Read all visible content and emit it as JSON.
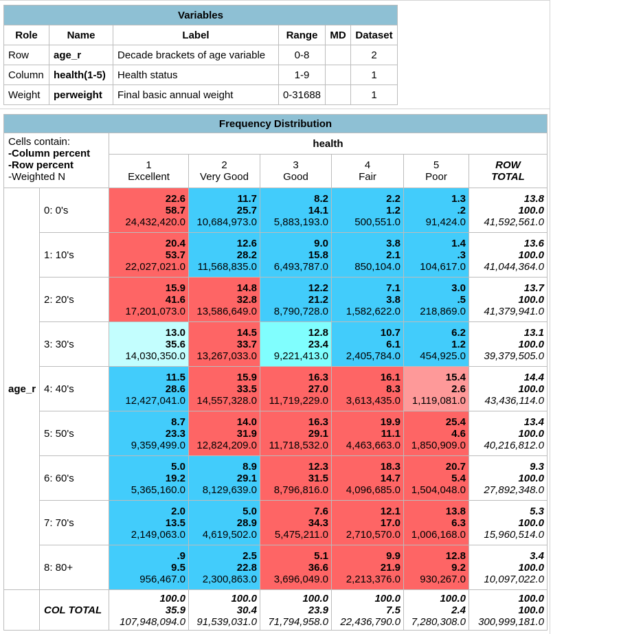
{
  "variables": {
    "title": "Variables",
    "headers": [
      "Role",
      "Name",
      "Label",
      "Range",
      "MD",
      "Dataset"
    ],
    "rows": [
      {
        "role": "Row",
        "name": "age_r",
        "label": "Decade brackets of age variable",
        "range": "0-8",
        "md": "",
        "dataset": "2"
      },
      {
        "role": "Column",
        "name": "health(1-5)",
        "label": "Health status",
        "range": "1-9",
        "md": "",
        "dataset": "1"
      },
      {
        "role": "Weight",
        "name": "perweight",
        "label": "Final basic annual weight",
        "range": "0-31688",
        "md": "",
        "dataset": "1"
      }
    ]
  },
  "frequency": {
    "title": "Frequency Distribution",
    "cells_contain": [
      "Cells contain:",
      "-Column percent",
      "-Row percent",
      "-Weighted N"
    ],
    "column_variable": "health",
    "row_variable": "age_r",
    "columns": [
      {
        "code": "1",
        "label": "Excellent"
      },
      {
        "code": "2",
        "label": "Very Good"
      },
      {
        "code": "3",
        "label": "Good"
      },
      {
        "code": "4",
        "label": "Fair"
      },
      {
        "code": "5",
        "label": "Poor"
      }
    ],
    "row_total_label": [
      "ROW",
      "TOTAL"
    ],
    "col_total_label": "COL TOTAL",
    "colors": {
      "red": "#fe6565",
      "blue": "#42ccfb",
      "pink": "#fe9999",
      "lightcyan": "#c3fefe",
      "cyan": "#80fefe",
      "white": "#ffffff"
    },
    "rows": [
      {
        "label": "0: 0's",
        "cells": [
          {
            "a": "22.6",
            "b": "58.7",
            "n": "24,432,420.0",
            "color": "red"
          },
          {
            "a": "11.7",
            "b": "25.7",
            "n": "10,684,973.0",
            "color": "blue"
          },
          {
            "a": "8.2",
            "b": "14.1",
            "n": "5,883,193.0",
            "color": "blue"
          },
          {
            "a": "2.2",
            "b": "1.2",
            "n": "500,551.0",
            "color": "blue"
          },
          {
            "a": "1.3",
            "b": ".2",
            "n": "91,424.0",
            "color": "blue"
          }
        ],
        "total": {
          "a": "13.8",
          "b": "100.0",
          "n": "41,592,561.0"
        }
      },
      {
        "label": "1: 10's",
        "cells": [
          {
            "a": "20.4",
            "b": "53.7",
            "n": "22,027,021.0",
            "color": "red"
          },
          {
            "a": "12.6",
            "b": "28.2",
            "n": "11,568,835.0",
            "color": "blue"
          },
          {
            "a": "9.0",
            "b": "15.8",
            "n": "6,493,787.0",
            "color": "blue"
          },
          {
            "a": "3.8",
            "b": "2.1",
            "n": "850,104.0",
            "color": "blue"
          },
          {
            "a": "1.4",
            "b": ".3",
            "n": "104,617.0",
            "color": "blue"
          }
        ],
        "total": {
          "a": "13.6",
          "b": "100.0",
          "n": "41,044,364.0"
        }
      },
      {
        "label": "2: 20's",
        "cells": [
          {
            "a": "15.9",
            "b": "41.6",
            "n": "17,201,073.0",
            "color": "red"
          },
          {
            "a": "14.8",
            "b": "32.8",
            "n": "13,586,649.0",
            "color": "red"
          },
          {
            "a": "12.2",
            "b": "21.2",
            "n": "8,790,728.0",
            "color": "blue"
          },
          {
            "a": "7.1",
            "b": "3.8",
            "n": "1,582,622.0",
            "color": "blue"
          },
          {
            "a": "3.0",
            "b": ".5",
            "n": "218,869.0",
            "color": "blue"
          }
        ],
        "total": {
          "a": "13.7",
          "b": "100.0",
          "n": "41,379,941.0"
        }
      },
      {
        "label": "3: 30's",
        "cells": [
          {
            "a": "13.0",
            "b": "35.6",
            "n": "14,030,350.0",
            "color": "lightcyan"
          },
          {
            "a": "14.5",
            "b": "33.7",
            "n": "13,267,033.0",
            "color": "red"
          },
          {
            "a": "12.8",
            "b": "23.4",
            "n": "9,221,413.0",
            "color": "cyan"
          },
          {
            "a": "10.7",
            "b": "6.1",
            "n": "2,405,784.0",
            "color": "blue"
          },
          {
            "a": "6.2",
            "b": "1.2",
            "n": "454,925.0",
            "color": "blue"
          }
        ],
        "total": {
          "a": "13.1",
          "b": "100.0",
          "n": "39,379,505.0"
        }
      },
      {
        "label": "4: 40's",
        "cells": [
          {
            "a": "11.5",
            "b": "28.6",
            "n": "12,427,041.0",
            "color": "blue"
          },
          {
            "a": "15.9",
            "b": "33.5",
            "n": "14,557,328.0",
            "color": "red"
          },
          {
            "a": "16.3",
            "b": "27.0",
            "n": "11,719,229.0",
            "color": "red"
          },
          {
            "a": "16.1",
            "b": "8.3",
            "n": "3,613,435.0",
            "color": "red"
          },
          {
            "a": "15.4",
            "b": "2.6",
            "n": "1,119,081.0",
            "color": "pink"
          }
        ],
        "total": {
          "a": "14.4",
          "b": "100.0",
          "n": "43,436,114.0"
        }
      },
      {
        "label": "5: 50's",
        "cells": [
          {
            "a": "8.7",
            "b": "23.3",
            "n": "9,359,499.0",
            "color": "blue"
          },
          {
            "a": "14.0",
            "b": "31.9",
            "n": "12,824,209.0",
            "color": "red"
          },
          {
            "a": "16.3",
            "b": "29.1",
            "n": "11,718,532.0",
            "color": "red"
          },
          {
            "a": "19.9",
            "b": "11.1",
            "n": "4,463,663.0",
            "color": "red"
          },
          {
            "a": "25.4",
            "b": "4.6",
            "n": "1,850,909.0",
            "color": "red"
          }
        ],
        "total": {
          "a": "13.4",
          "b": "100.0",
          "n": "40,216,812.0"
        }
      },
      {
        "label": "6: 60's",
        "cells": [
          {
            "a": "5.0",
            "b": "19.2",
            "n": "5,365,160.0",
            "color": "blue"
          },
          {
            "a": "8.9",
            "b": "29.1",
            "n": "8,129,639.0",
            "color": "blue"
          },
          {
            "a": "12.3",
            "b": "31.5",
            "n": "8,796,816.0",
            "color": "red"
          },
          {
            "a": "18.3",
            "b": "14.7",
            "n": "4,096,685.0",
            "color": "red"
          },
          {
            "a": "20.7",
            "b": "5.4",
            "n": "1,504,048.0",
            "color": "red"
          }
        ],
        "total": {
          "a": "9.3",
          "b": "100.0",
          "n": "27,892,348.0"
        }
      },
      {
        "label": "7: 70's",
        "cells": [
          {
            "a": "2.0",
            "b": "13.5",
            "n": "2,149,063.0",
            "color": "blue"
          },
          {
            "a": "5.0",
            "b": "28.9",
            "n": "4,619,502.0",
            "color": "blue"
          },
          {
            "a": "7.6",
            "b": "34.3",
            "n": "5,475,211.0",
            "color": "red"
          },
          {
            "a": "12.1",
            "b": "17.0",
            "n": "2,710,570.0",
            "color": "red"
          },
          {
            "a": "13.8",
            "b": "6.3",
            "n": "1,006,168.0",
            "color": "red"
          }
        ],
        "total": {
          "a": "5.3",
          "b": "100.0",
          "n": "15,960,514.0"
        }
      },
      {
        "label": "8: 80+",
        "cells": [
          {
            "a": ".9",
            "b": "9.5",
            "n": "956,467.0",
            "color": "blue"
          },
          {
            "a": "2.5",
            "b": "22.8",
            "n": "2,300,863.0",
            "color": "blue"
          },
          {
            "a": "5.1",
            "b": "36.6",
            "n": "3,696,049.0",
            "color": "red"
          },
          {
            "a": "9.9",
            "b": "21.9",
            "n": "2,213,376.0",
            "color": "red"
          },
          {
            "a": "12.8",
            "b": "9.2",
            "n": "930,267.0",
            "color": "red"
          }
        ],
        "total": {
          "a": "3.4",
          "b": "100.0",
          "n": "10,097,022.0"
        }
      }
    ],
    "col_totals": [
      {
        "a": "100.0",
        "b": "35.9",
        "n": "107,948,094.0"
      },
      {
        "a": "100.0",
        "b": "30.4",
        "n": "91,539,031.0"
      },
      {
        "a": "100.0",
        "b": "23.9",
        "n": "71,794,958.0"
      },
      {
        "a": "100.0",
        "b": "7.5",
        "n": "22,436,790.0"
      },
      {
        "a": "100.0",
        "b": "2.4",
        "n": "7,280,308.0"
      }
    ],
    "grand_total": {
      "a": "100.0",
      "b": "100.0",
      "n": "300,999,181.0"
    }
  }
}
